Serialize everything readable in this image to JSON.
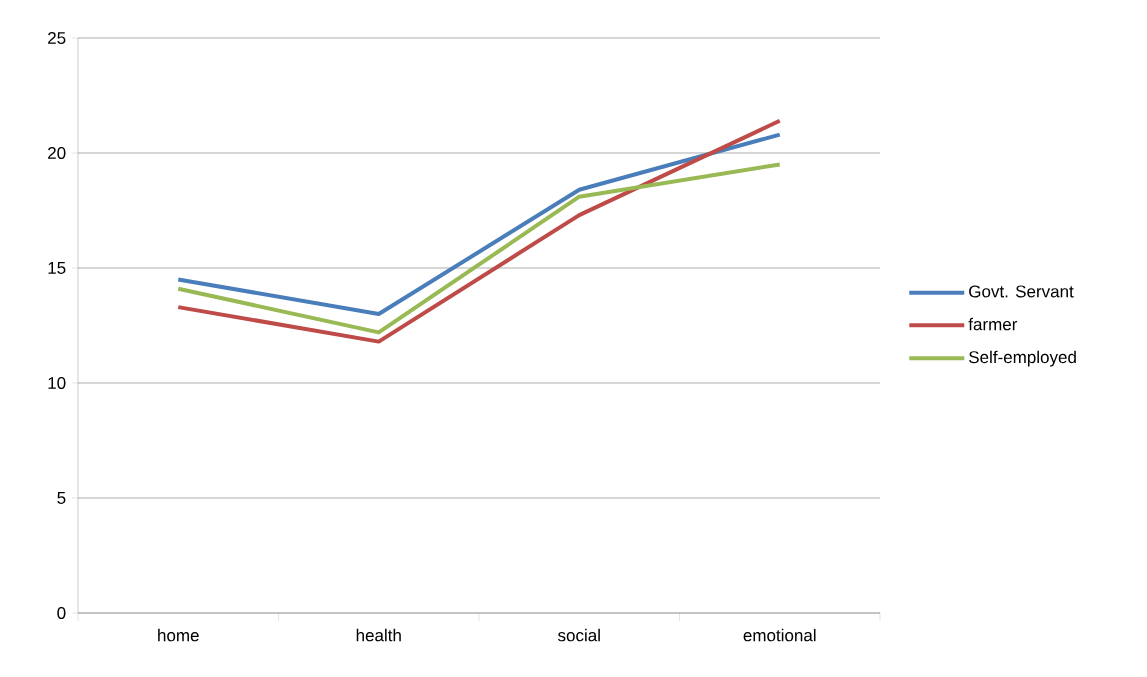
{
  "chart_data": {
    "type": "line",
    "categories": [
      "home",
      "health",
      "social",
      "emotional"
    ],
    "series": [
      {
        "name": "Govt. Servant",
        "color": "#4a7ebb",
        "values": [
          14.5,
          13.0,
          18.4,
          20.8
        ]
      },
      {
        "name": "farmer",
        "color": "#be4b48",
        "values": [
          13.3,
          11.8,
          17.3,
          21.4
        ]
      },
      {
        "name": "Self-employed",
        "color": "#98b954",
        "values": [
          14.1,
          12.2,
          18.1,
          19.5
        ]
      }
    ],
    "ylim": [
      0,
      25
    ],
    "yticks": [
      0,
      5,
      10,
      15,
      20,
      25
    ],
    "grid": "y",
    "legend": "right",
    "marker": "none",
    "line_style": "solid"
  }
}
